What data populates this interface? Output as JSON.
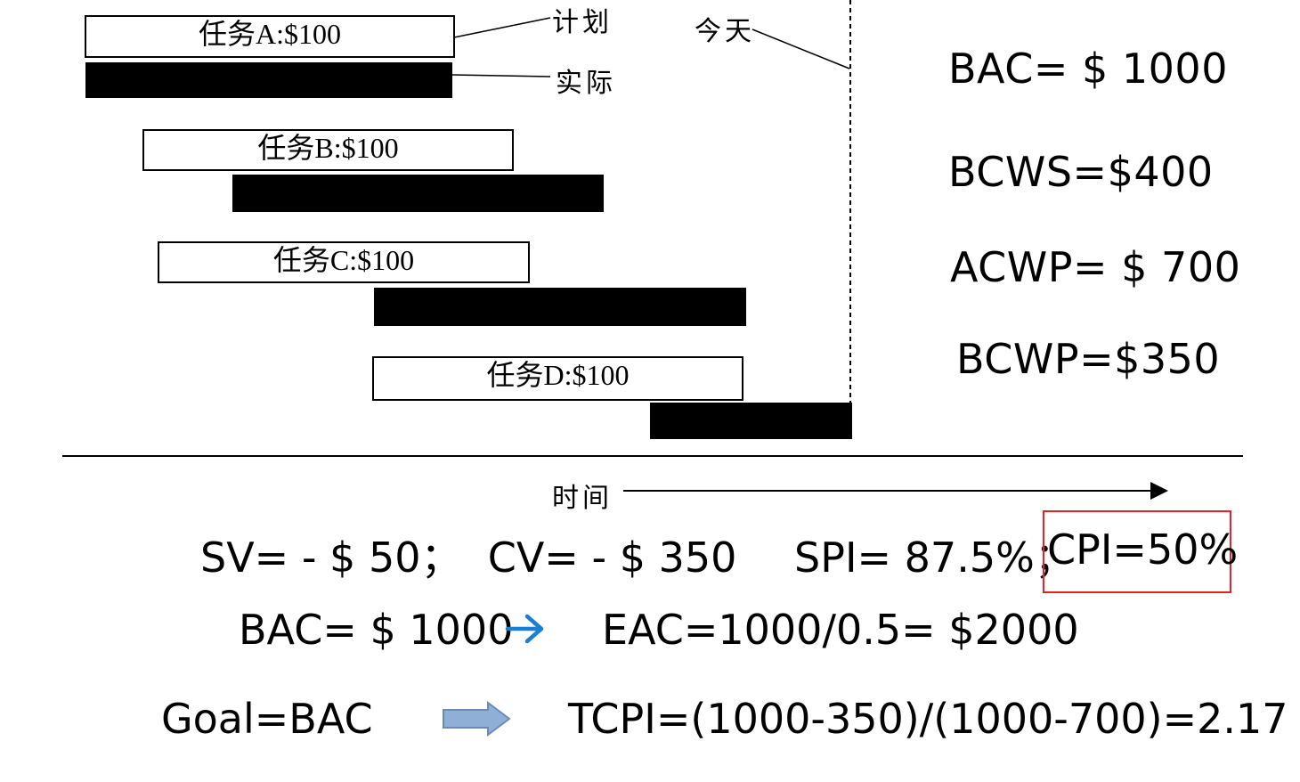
{
  "gantt": {
    "legend": {
      "plan": "计划",
      "actual": "实际",
      "today": "今天"
    },
    "tasks": [
      {
        "label": "任务A:$100"
      },
      {
        "label": "任务B:$100"
      },
      {
        "label": "任务C:$100"
      },
      {
        "label": "任务D:$100"
      }
    ],
    "time_axis_label": "时间"
  },
  "metrics": {
    "bac": "BAC= $ 1000",
    "bcws": "BCWS=$400",
    "acwp": "ACWP= $ 700",
    "bcwp": "BCWP=$350"
  },
  "results": {
    "sv_cv": "SV= - $ 50；  CV= - $ 350",
    "spi": "SPI= 87.5%；",
    "cpi": "CPI=50%",
    "bac_line": "BAC= $ 1000",
    "eac": "EAC=1000/0.5= $2000",
    "goal": "Goal=BAC",
    "tcpi": "TCPI=(1000-350)/(1000-700)=2.17"
  },
  "colors": {
    "highlight": "#e3222b",
    "blue_arrow": "#1a7fd0",
    "block_arrow": "#8fafd6"
  }
}
